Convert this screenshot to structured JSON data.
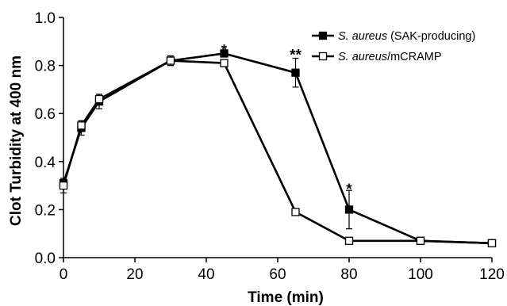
{
  "chart_data": {
    "type": "line",
    "xlabel": "Time (min)",
    "ylabel": "Clot Turbidity at 400 nm",
    "xlim": [
      0,
      120
    ],
    "ylim": [
      0,
      1.0
    ],
    "xticks": [
      0,
      20,
      40,
      60,
      80,
      100,
      120
    ],
    "yticks": [
      0.0,
      0.2,
      0.4,
      0.6,
      0.8,
      1.0
    ],
    "xtick_labels": [
      "0",
      "20",
      "40",
      "60",
      "80",
      "100",
      "120"
    ],
    "ytick_labels": [
      "0.0",
      "0.2",
      "0.4",
      "0.6",
      "0.8",
      "1.0"
    ],
    "grid": false,
    "legend_position": "top-right",
    "series": [
      {
        "name_italic": "S. aureus",
        "name_rest": " (SAK-producing)",
        "marker": "filled-square",
        "color": "#000000",
        "x": [
          0,
          5,
          10,
          30,
          45,
          65,
          80,
          100,
          120
        ],
        "y": [
          0.31,
          0.54,
          0.65,
          0.82,
          0.85,
          0.77,
          0.2,
          0.07,
          0.06
        ],
        "err": [
          0.02,
          0.03,
          0.03,
          0.02,
          0.01,
          0.06,
          0.08,
          0.01,
          0.01
        ]
      },
      {
        "name_italic": "S. aureus",
        "name_rest": "/mCRAMP",
        "marker": "open-square",
        "color": "#000000",
        "x": [
          0,
          5,
          10,
          30,
          45,
          65,
          80,
          100,
          120
        ],
        "y": [
          0.3,
          0.55,
          0.66,
          0.82,
          0.81,
          0.19,
          0.07,
          0.07,
          0.06
        ],
        "err": [
          0.03,
          0.02,
          0.02,
          0.02,
          0.01,
          0.01,
          0.01,
          0.01,
          0.01
        ]
      }
    ],
    "annotations": [
      {
        "text": "*",
        "x": 45,
        "y": 0.89
      },
      {
        "text": "**",
        "x": 65,
        "y": 0.87
      },
      {
        "text": "*",
        "x": 80,
        "y": 0.31
      }
    ]
  }
}
